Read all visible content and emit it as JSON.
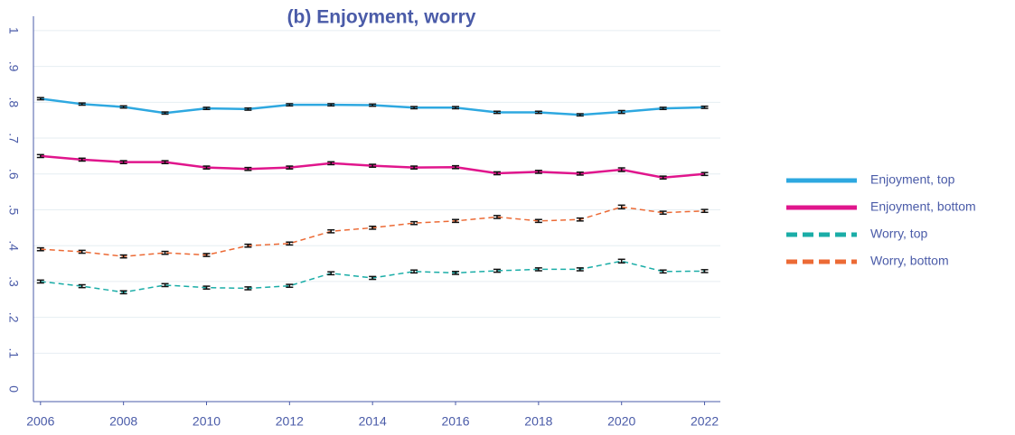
{
  "chart_data": {
    "type": "line",
    "title": "(b) Enjoyment, worry",
    "x": [
      2006,
      2007,
      2008,
      2009,
      2010,
      2011,
      2012,
      2013,
      2014,
      2015,
      2016,
      2017,
      2018,
      2019,
      2020,
      2021,
      2022
    ],
    "series": [
      {
        "name": "Enjoyment, top",
        "color": "#2ea8e0",
        "dashed": false,
        "values": [
          0.81,
          0.795,
          0.787,
          0.77,
          0.783,
          0.781,
          0.793,
          0.793,
          0.792,
          0.785,
          0.785,
          0.772,
          0.772,
          0.765,
          0.773,
          0.783,
          0.786
        ],
        "errors": [
          0.003,
          0.003,
          0.003,
          0.003,
          0.003,
          0.003,
          0.003,
          0.003,
          0.003,
          0.003,
          0.003,
          0.003,
          0.003,
          0.003,
          0.004,
          0.003,
          0.003
        ]
      },
      {
        "name": "Enjoyment, bottom",
        "color": "#e0158c",
        "dashed": false,
        "values": [
          0.65,
          0.64,
          0.633,
          0.633,
          0.618,
          0.614,
          0.618,
          0.63,
          0.623,
          0.618,
          0.619,
          0.602,
          0.606,
          0.601,
          0.612,
          0.59,
          0.6
        ],
        "errors": [
          0.004,
          0.004,
          0.004,
          0.004,
          0.004,
          0.004,
          0.004,
          0.004,
          0.004,
          0.004,
          0.004,
          0.004,
          0.004,
          0.004,
          0.005,
          0.004,
          0.004
        ]
      },
      {
        "name": "Worry, top",
        "color": "#1aada7",
        "dashed": true,
        "values": [
          0.3,
          0.287,
          0.27,
          0.29,
          0.283,
          0.281,
          0.288,
          0.323,
          0.31,
          0.328,
          0.324,
          0.33,
          0.334,
          0.334,
          0.357,
          0.328,
          0.329
        ],
        "errors": [
          0.004,
          0.004,
          0.004,
          0.004,
          0.004,
          0.004,
          0.004,
          0.004,
          0.004,
          0.004,
          0.004,
          0.004,
          0.004,
          0.004,
          0.005,
          0.004,
          0.004
        ]
      },
      {
        "name": "Worry, bottom",
        "color": "#ec6a35",
        "dashed": true,
        "values": [
          0.39,
          0.383,
          0.37,
          0.38,
          0.374,
          0.4,
          0.406,
          0.44,
          0.45,
          0.463,
          0.469,
          0.48,
          0.469,
          0.473,
          0.508,
          0.492,
          0.497
        ],
        "errors": [
          0.004,
          0.004,
          0.004,
          0.004,
          0.004,
          0.004,
          0.004,
          0.004,
          0.004,
          0.004,
          0.004,
          0.004,
          0.004,
          0.004,
          0.005,
          0.004,
          0.004
        ]
      }
    ],
    "xlim": [
      2005.83,
      2022.38
    ],
    "xticks": [
      2006,
      2008,
      2010,
      2012,
      2014,
      2016,
      2018,
      2020,
      2022
    ],
    "ylim": [
      -0.035,
      1.04
    ],
    "yticks": [
      0,
      {
        "value": 0.1,
        "label": ".1"
      },
      {
        "value": 0.2,
        "label": ".2"
      },
      {
        "value": 0.3,
        "label": ".3"
      },
      {
        "value": 0.4,
        "label": ".4"
      },
      {
        "value": 0.5,
        "label": ".5"
      },
      {
        "value": 0.6,
        "label": ".6"
      },
      {
        "value": 0.7,
        "label": ".7"
      },
      {
        "value": 0.8,
        "label": ".8"
      },
      {
        "value": 0.9,
        "label": ".9"
      },
      1
    ],
    "grid": true,
    "legend": "right"
  }
}
